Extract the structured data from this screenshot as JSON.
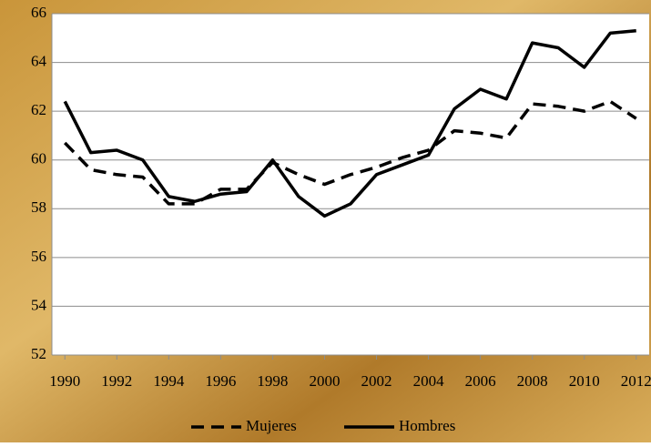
{
  "chart_data": {
    "type": "line",
    "x": [
      1990,
      1991,
      1992,
      1993,
      1994,
      1995,
      1996,
      1997,
      1998,
      1999,
      2000,
      2001,
      2002,
      2003,
      2004,
      2005,
      2006,
      2007,
      2008,
      2009,
      2010,
      2011,
      2012
    ],
    "series": [
      {
        "name": "Mujeres",
        "color": "#000000",
        "dash": true,
        "values": [
          60.7,
          59.6,
          59.4,
          59.3,
          58.2,
          58.2,
          58.8,
          58.8,
          59.9,
          59.4,
          59.0,
          59.4,
          59.7,
          60.1,
          60.4,
          61.2,
          61.1,
          60.9,
          62.3,
          62.2,
          62.0,
          62.4,
          61.7
        ]
      },
      {
        "name": "Hombres",
        "color": "#000000",
        "dash": false,
        "values": [
          62.4,
          60.3,
          60.4,
          60.0,
          58.5,
          58.3,
          58.6,
          58.7,
          60.0,
          58.5,
          57.7,
          58.2,
          59.4,
          59.8,
          60.2,
          62.1,
          62.9,
          62.5,
          64.8,
          64.6,
          63.8,
          65.2,
          65.3
        ]
      }
    ],
    "xlim": [
      1989.5,
      2012.5
    ],
    "xticks": [
      1990,
      1992,
      1994,
      1996,
      1998,
      2000,
      2002,
      2004,
      2006,
      2008,
      2010,
      2012
    ],
    "ylim": [
      52,
      66
    ],
    "yticks": [
      52,
      54,
      56,
      58,
      60,
      62,
      64,
      66
    ],
    "grid": true,
    "legend": "bottom"
  }
}
